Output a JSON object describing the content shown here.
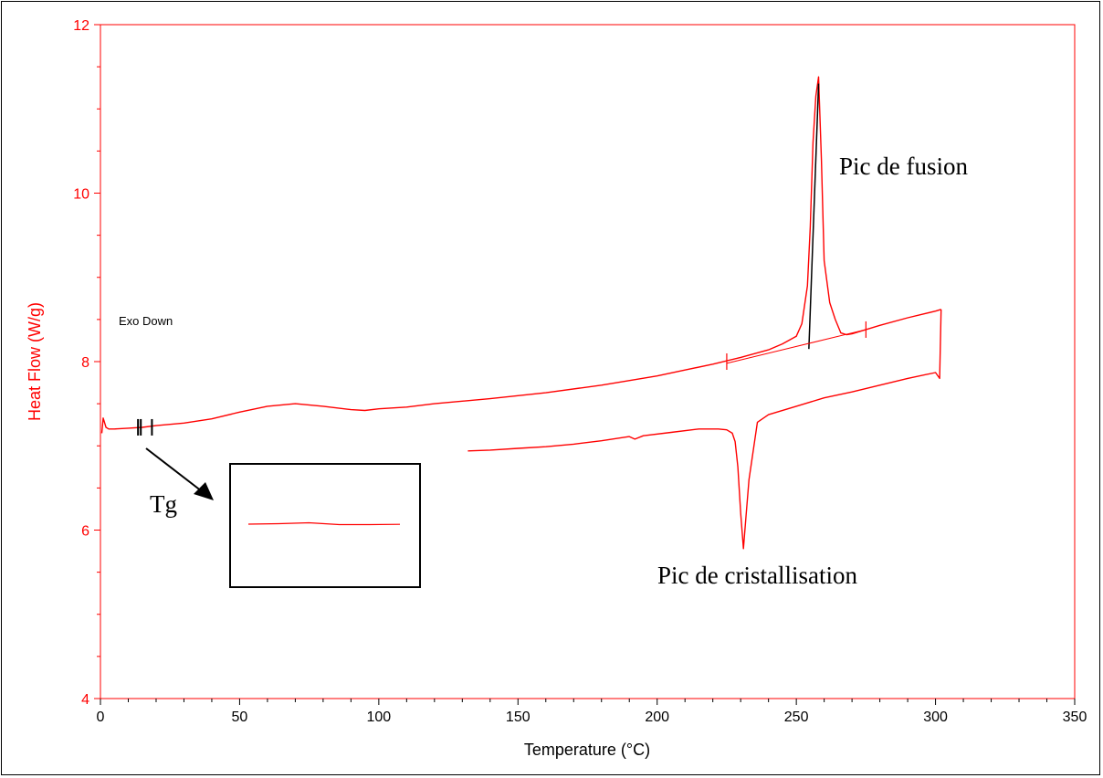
{
  "chart_data": {
    "type": "line",
    "xlabel": "Temperature (°C)",
    "ylabel": "Heat Flow (W/g)",
    "xlim": [
      0,
      350
    ],
    "ylim": [
      4,
      12
    ],
    "x_ticks": [
      0,
      50,
      100,
      150,
      200,
      250,
      300,
      350
    ],
    "y_ticks": [
      4,
      6,
      8,
      10,
      12
    ],
    "grid": false,
    "colors": {
      "curve": "#ff0000",
      "y_axis": "#ff0000",
      "x_axis": "#000000",
      "annotation": "#000000"
    },
    "series": [
      {
        "x": [
          0.5,
          1,
          2,
          3,
          5,
          10,
          15,
          20,
          30,
          40,
          50,
          60,
          70,
          80,
          90,
          95,
          100,
          110,
          120,
          140,
          160,
          180,
          200,
          210,
          220,
          230,
          240,
          245,
          250,
          252,
          254,
          255,
          256,
          257,
          258,
          259,
          260,
          262,
          264,
          266,
          268,
          270,
          275,
          280,
          290,
          300,
          302
        ],
        "y": [
          7.15,
          7.33,
          7.22,
          7.2,
          7.2,
          7.21,
          7.22,
          7.24,
          7.27,
          7.32,
          7.4,
          7.47,
          7.5,
          7.47,
          7.43,
          7.42,
          7.44,
          7.46,
          7.5,
          7.56,
          7.63,
          7.72,
          7.83,
          7.9,
          7.97,
          8.05,
          8.14,
          8.21,
          8.3,
          8.45,
          8.9,
          9.6,
          10.6,
          11.15,
          11.38,
          10.4,
          9.2,
          8.7,
          8.5,
          8.34,
          8.32,
          8.33,
          8.38,
          8.43,
          8.52,
          8.6,
          8.62
        ]
      },
      {
        "x": [
          302,
          301.5,
          300,
          290,
          280,
          270,
          260,
          250,
          240,
          236,
          233,
          232,
          231,
          230,
          229,
          228,
          227,
          225,
          222,
          215,
          205,
          195,
          192,
          190,
          180,
          170,
          160,
          150,
          140,
          132
        ],
        "y": [
          8.62,
          7.8,
          7.87,
          7.8,
          7.72,
          7.64,
          7.57,
          7.47,
          7.37,
          7.28,
          6.6,
          6.2,
          5.78,
          6.2,
          6.75,
          7.05,
          7.15,
          7.19,
          7.2,
          7.2,
          7.16,
          7.12,
          7.08,
          7.11,
          7.06,
          7.02,
          6.99,
          6.97,
          6.95,
          6.94
        ]
      }
    ],
    "tick_marks": [
      {
        "x": 13.5,
        "y": 7.22
      },
      {
        "x": 14.5,
        "y": 7.22
      },
      {
        "x": 18.5,
        "y": 7.22
      },
      {
        "x": 225,
        "y": 8.0
      },
      {
        "x": 275,
        "y": 8.38
      }
    ],
    "tangent_line": {
      "x": [
        254.5,
        258
      ],
      "y": [
        8.15,
        11.3
      ]
    },
    "baseline_line": {
      "x": [
        225,
        275
      ],
      "y": [
        7.98,
        8.38
      ]
    },
    "annotations": {
      "exo": "Exo Down",
      "tg": "Tg",
      "fusion": "Pic de fusion",
      "cristallisation": "Pic de cristallisation"
    },
    "inset": {
      "x": [
        0,
        0.2,
        0.4,
        0.6,
        0.8,
        1
      ],
      "y": [
        0.5,
        0.45,
        0.35,
        0.55,
        0.55,
        0.52
      ]
    }
  }
}
